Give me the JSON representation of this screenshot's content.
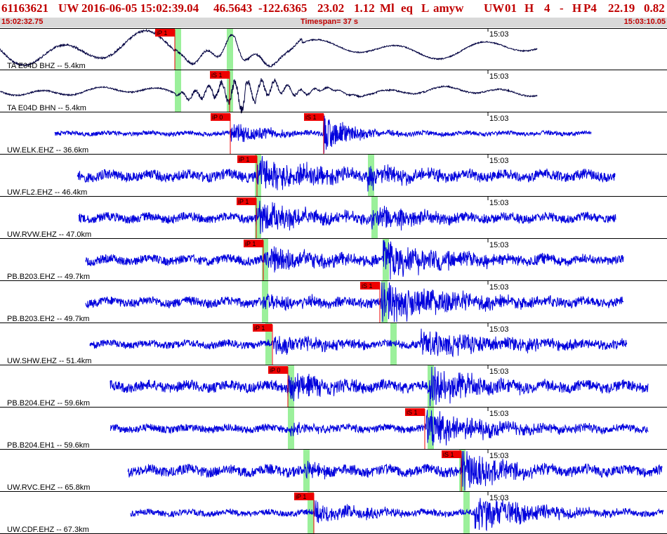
{
  "header": {
    "event_id": "61163621",
    "network": "UW",
    "datetime": "2016-06-05 15:02:39.04",
    "lat": "46.5643",
    "lon": "-122.6365",
    "depth": "23.02",
    "magnitude": "1.12",
    "mag_type": "Ml",
    "event_type": "eq",
    "review": "L",
    "analyst": "amyw",
    "auth": "UW",
    "version": "01",
    "h": "H",
    "nsta": "4",
    "dash": "-",
    "h2": "H",
    "p4": "P4",
    "v1": "22.19",
    "v2": "0.82",
    "start_time": "15:02:32.75",
    "timespan": "Timespan=  37 s",
    "end_time": "15:03:10.05"
  },
  "tick_label": "15:03",
  "colors": {
    "trace_black": "#000040",
    "trace_blue": "#0000dd",
    "pick_red": "#ee0000",
    "window_green": "#9bf09b",
    "header_red": "#c00000",
    "subbar_gray": "#d9d9d9"
  },
  "traces": [
    {
      "label": "TA E04D BHZ -- 5.4km",
      "color": "black",
      "start": 0,
      "end": 765,
      "amp": 22,
      "style": "wave",
      "picks": [
        {
          "label": "iP 1",
          "x": 249
        }
      ],
      "green": [
        249,
        323
      ]
    },
    {
      "label": "TA E04D BHN -- 5.4km",
      "color": "black",
      "start": 0,
      "end": 765,
      "amp": 12,
      "style": "wave2",
      "picks": [
        {
          "label": "iS 1",
          "x": 327
        }
      ],
      "green": [
        249,
        323
      ]
    },
    {
      "label": "UW.ELK.EHZ -- 36.6km",
      "color": "blue",
      "start": 78,
      "end": 842,
      "amp": 3,
      "style": "noise",
      "picks": [
        {
          "label": "iP 0",
          "x": 328
        },
        {
          "label": "iS 1",
          "x": 461
        }
      ],
      "green": [],
      "bursts": [
        [
          328,
          14,
          60
        ],
        [
          461,
          26,
          40
        ]
      ]
    },
    {
      "label": "UW.FL2.EHZ -- 46.4km",
      "color": "blue",
      "start": 110,
      "end": 876,
      "amp": 7,
      "style": "noise",
      "picks": [
        {
          "label": "iP 1",
          "x": 366
        }
      ],
      "green": [
        363,
        524
      ],
      "bursts": [
        [
          366,
          26,
          80
        ],
        [
          524,
          14,
          70
        ]
      ]
    },
    {
      "label": "UW.RVW.EHZ -- 47.0km",
      "color": "blue",
      "start": 112,
      "end": 877,
      "amp": 6,
      "style": "noise",
      "picks": [
        {
          "label": "iP 1",
          "x": 365
        }
      ],
      "green": [
        363,
        529
      ],
      "bursts": [
        [
          365,
          22,
          80
        ],
        [
          529,
          18,
          70
        ]
      ]
    },
    {
      "label": "PB.B203.EHZ -- 49.7km",
      "color": "blue",
      "start": 122,
      "end": 888,
      "amp": 6,
      "style": "noise",
      "picks": [
        {
          "label": "iP 1",
          "x": 375
        }
      ],
      "green": [
        373,
        545
      ],
      "bursts": [
        [
          375,
          20,
          90
        ],
        [
          545,
          28,
          90
        ]
      ]
    },
    {
      "label": "PB.B203.EH2 -- 49.7km",
      "color": "blue",
      "start": 122,
      "end": 888,
      "amp": 6,
      "style": "noise",
      "picks": [
        {
          "label": "iS 1",
          "x": 541
        }
      ],
      "green": [
        373,
        543
      ],
      "bursts": [
        [
          375,
          12,
          70
        ],
        [
          543,
          30,
          100
        ]
      ]
    },
    {
      "label": "UW.SHW.EHZ -- 51.4km",
      "color": "blue",
      "start": 128,
      "end": 893,
      "amp": 5,
      "style": "noise",
      "picks": [
        {
          "label": "iP 1",
          "x": 388
        }
      ],
      "green": [
        378,
        556
      ],
      "bursts": [
        [
          388,
          14,
          80
        ],
        [
          600,
          20,
          130
        ]
      ]
    },
    {
      "label": "PB.B204.EHZ -- 59.6km",
      "color": "blue",
      "start": 157,
      "end": 923,
      "amp": 7,
      "style": "noise",
      "picks": [
        {
          "label": "iP 0",
          "x": 410
        }
      ],
      "green": [
        410,
        609
      ],
      "bursts": [
        [
          410,
          18,
          60
        ],
        [
          609,
          30,
          70
        ]
      ]
    },
    {
      "label": "PB.B204.EH1 -- 59.6km",
      "color": "blue",
      "start": 157,
      "end": 923,
      "amp": 5,
      "style": "noise",
      "picks": [
        {
          "label": "iS 1",
          "x": 605
        }
      ],
      "green": [
        410,
        609
      ],
      "bursts": [
        [
          412,
          8,
          40
        ],
        [
          607,
          26,
          90
        ]
      ]
    },
    {
      "label": "UW.RVC.EHZ -- 65.8km",
      "color": "blue",
      "start": 182,
      "end": 943,
      "amp": 7,
      "style": "noise",
      "picks": [
        {
          "label": "iS 1",
          "x": 657
        }
      ],
      "green": [
        432,
        654
      ],
      "bursts": [
        [
          434,
          10,
          40
        ],
        [
          657,
          28,
          60
        ]
      ]
    },
    {
      "label": "UW.CDF.EHZ -- 67.3km",
      "color": "blue",
      "start": 186,
      "end": 945,
      "amp": 4,
      "style": "noise",
      "picks": [
        {
          "label": "iP 1",
          "x": 447
        }
      ],
      "green": [
        438,
        660
      ],
      "bursts": [
        [
          447,
          14,
          80
        ],
        [
          676,
          26,
          90
        ]
      ]
    }
  ]
}
